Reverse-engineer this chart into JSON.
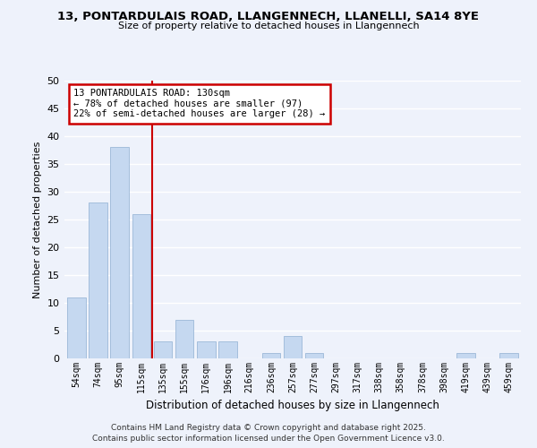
{
  "title": "13, PONTARDULAIS ROAD, LLANGENNECH, LLANELLI, SA14 8YE",
  "subtitle": "Size of property relative to detached houses in Llangennech",
  "xlabel": "Distribution of detached houses by size in Llangennech",
  "ylabel": "Number of detached properties",
  "categories": [
    "54sqm",
    "74sqm",
    "95sqm",
    "115sqm",
    "135sqm",
    "155sqm",
    "176sqm",
    "196sqm",
    "216sqm",
    "236sqm",
    "257sqm",
    "277sqm",
    "297sqm",
    "317sqm",
    "338sqm",
    "358sqm",
    "378sqm",
    "398sqm",
    "419sqm",
    "439sqm",
    "459sqm"
  ],
  "values": [
    11,
    28,
    38,
    26,
    3,
    7,
    3,
    3,
    0,
    1,
    4,
    1,
    0,
    0,
    0,
    0,
    0,
    0,
    1,
    0,
    1
  ],
  "bar_color": "#c5d8f0",
  "bar_edge_color": "#9cb8d8",
  "vline_x_index": 3,
  "vline_color": "#cc0000",
  "vline_label": "13 PONTARDULAIS ROAD: 130sqm",
  "annotation_smaller": "← 78% of detached houses are smaller (97)",
  "annotation_larger": "22% of semi-detached houses are larger (28) →",
  "box_facecolor": "#ffffff",
  "box_edgecolor": "#cc0000",
  "ylim": [
    0,
    50
  ],
  "yticks": [
    0,
    5,
    10,
    15,
    20,
    25,
    30,
    35,
    40,
    45,
    50
  ],
  "background_color": "#eef2fb",
  "grid_color": "#ffffff",
  "footer1": "Contains HM Land Registry data © Crown copyright and database right 2025.",
  "footer2": "Contains public sector information licensed under the Open Government Licence v3.0."
}
